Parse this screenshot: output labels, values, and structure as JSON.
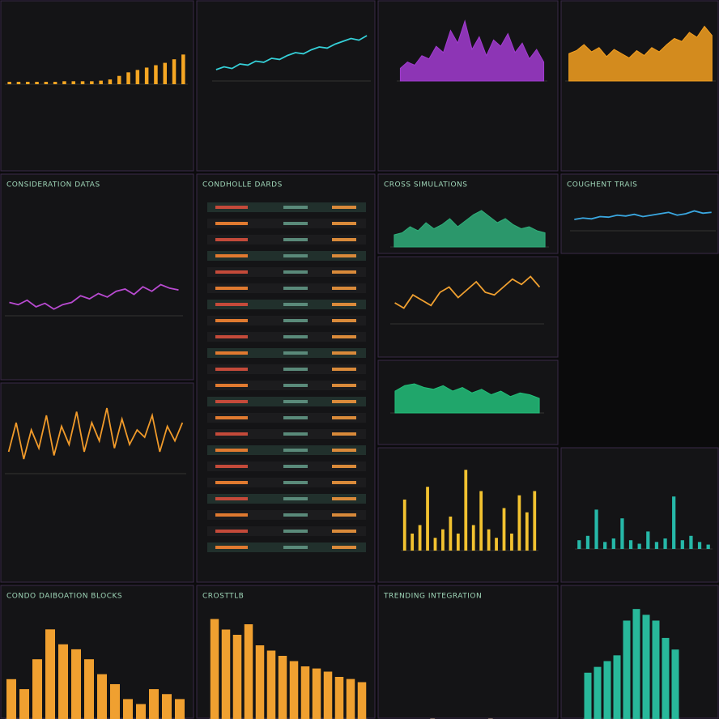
{
  "panels": [
    {
      "chart": {
        "type": "bar",
        "color": "#f5a623",
        "ylim": [
          0,
          60
        ],
        "values": [
          4,
          4,
          4,
          4,
          4,
          4,
          5,
          5,
          5,
          5,
          6,
          8,
          14,
          20,
          24,
          28,
          32,
          36,
          42,
          50
        ]
      }
    },
    {
      "chart": {
        "type": "line",
        "color": "#35d0d8",
        "ylim": [
          0,
          100
        ],
        "values": [
          20,
          25,
          22,
          30,
          28,
          35,
          33,
          40,
          38,
          45,
          50,
          48,
          55,
          60,
          58,
          65,
          70,
          75,
          72,
          80
        ]
      }
    },
    {
      "chart": {
        "type": "area",
        "color": "#a23bd1",
        "ylim": [
          0,
          100
        ],
        "values": [
          20,
          30,
          25,
          40,
          35,
          55,
          45,
          80,
          60,
          95,
          50,
          70,
          40,
          65,
          55,
          75,
          45,
          60,
          35,
          50,
          30
        ]
      }
    },
    {
      "chart": {
        "type": "area",
        "color": "#f5a020",
        "ylim": [
          0,
          100
        ],
        "values": [
          45,
          50,
          60,
          48,
          55,
          40,
          52,
          45,
          38,
          50,
          42,
          55,
          48,
          60,
          70,
          65,
          80,
          72,
          90,
          75
        ]
      }
    },
    {
      "title": "CONSIDERATION DATAS",
      "chart": {
        "type": "line",
        "color": "#b84ad0",
        "ylim": [
          0,
          100
        ],
        "values": [
          30,
          25,
          35,
          20,
          28,
          15,
          25,
          30,
          45,
          38,
          50,
          42,
          55,
          60,
          48,
          65,
          55,
          70,
          62,
          58
        ]
      }
    },
    {
      "title": "CROSS SIMULATIONS",
      "chart": {
        "type": "area",
        "color": "#2fae7a",
        "ylim": [
          0,
          100
        ],
        "values": [
          30,
          35,
          50,
          40,
          60,
          45,
          55,
          70,
          50,
          65,
          80,
          90,
          75,
          60,
          70,
          55,
          45,
          50,
          40,
          35
        ]
      }
    },
    {
      "chart": {
        "type": "line",
        "color": "#f0a030",
        "ylim": [
          0,
          100
        ],
        "values": [
          40,
          30,
          55,
          45,
          35,
          60,
          70,
          50,
          65,
          80,
          60,
          55,
          70,
          85,
          75,
          90,
          70
        ]
      }
    },
    {
      "title": "COUGHENT TRAIS",
      "chart": {
        "type": "line",
        "color": "#3aa7e0",
        "ylim": [
          0,
          100
        ],
        "values": [
          40,
          45,
          42,
          50,
          48,
          55,
          52,
          58,
          50,
          55,
          60,
          65,
          55,
          60,
          70,
          62,
          65
        ]
      }
    },
    {
      "chart": {
        "type": "area",
        "color": "#22c07a",
        "ylim": [
          0,
          100
        ],
        "values": [
          60,
          75,
          80,
          70,
          65,
          75,
          60,
          70,
          55,
          65,
          50,
          60,
          45,
          55,
          50,
          40
        ]
      }
    },
    {
      "chart": {
        "type": "line",
        "color": "#f09a2a",
        "ylim": [
          0,
          100
        ],
        "values": [
          30,
          70,
          20,
          60,
          35,
          80,
          25,
          65,
          40,
          85,
          30,
          70,
          45,
          90,
          35,
          75,
          40,
          60,
          50,
          80,
          30,
          65,
          45,
          70
        ]
      }
    },
    {
      "chart": {
        "type": "bar",
        "color": "#f2c230",
        "ylim": [
          0,
          100
        ],
        "values": [
          60,
          20,
          30,
          75,
          15,
          25,
          40,
          20,
          95,
          30,
          70,
          25,
          15,
          50,
          20,
          65,
          45,
          70
        ]
      }
    },
    {
      "chart": {
        "type": "bar",
        "color": "#26b8a8",
        "ylim": [
          0,
          100
        ],
        "values": [
          10,
          15,
          45,
          8,
          12,
          35,
          10,
          6,
          20,
          8,
          12,
          60,
          10,
          15,
          8,
          5
        ]
      }
    },
    {
      "title": "CONDO DAIBOATION BLOCKS",
      "chart": {
        "type": "bar",
        "color": "#f0a030",
        "ylim": [
          0,
          100
        ],
        "values": [
          40,
          30,
          60,
          90,
          75,
          70,
          60,
          45,
          35,
          20,
          15,
          30,
          25,
          20
        ]
      }
    },
    {
      "title": "CROSTTLB",
      "chart": {
        "type": "bar",
        "color": "#f0a030",
        "ylim": [
          0,
          100
        ],
        "values": [
          95,
          85,
          80,
          90,
          70,
          65,
          60,
          55,
          50,
          48,
          45,
          40,
          38,
          35
        ]
      }
    },
    {
      "title": "TRENDING INTEGRATION"
    },
    {
      "title": "CONDHOLLE DARDS"
    },
    {
      "chart": {
        "type": "bar",
        "color": "#28b89a",
        "ylim": [
          0,
          100
        ],
        "values": [
          40,
          45,
          50,
          55,
          85,
          95,
          90,
          85,
          70,
          60
        ]
      }
    }
  ]
}
